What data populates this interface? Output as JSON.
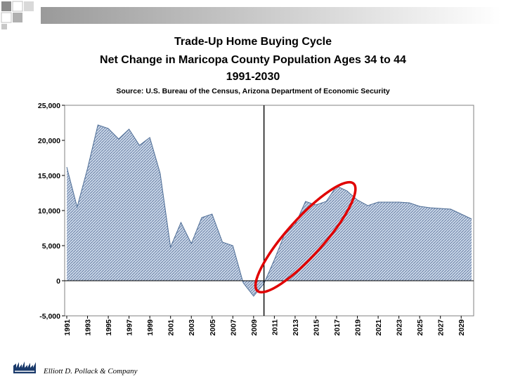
{
  "slide": {
    "title_lines": [
      "Trade-Up Home Buying Cycle",
      "Net Change in Maricopa County Population Ages 34 to 44",
      "1991-2030"
    ],
    "source": "Source: U.S. Bureau of the Census, Arizona Department of Economic Security",
    "footer": "Elliott D. Pollack & Company"
  },
  "colors": {
    "area_fill": "#c9d6e8",
    "hatch": "#5a7299",
    "outline": "#4f6e96",
    "highlight_ellipse": "#e00000",
    "divider_line": "#000000",
    "deco_gradient_start": "#9a9a9a",
    "deco_gradient_end": "#ffffff",
    "logo": "#1a3a6b"
  },
  "chart_data": {
    "type": "area",
    "title": "Net Change in Maricopa County Population Ages 34 to 44",
    "xlabel": "",
    "ylabel": "",
    "ylim": [
      -5000,
      25000
    ],
    "yticks": [
      -5000,
      0,
      5000,
      10000,
      15000,
      20000,
      25000
    ],
    "ytick_labels": [
      "-5,000",
      "0",
      "5,000",
      "10,000",
      "15,000",
      "20,000",
      "25,000"
    ],
    "xtick_labels": [
      "1991",
      "1993",
      "1995",
      "1997",
      "1999",
      "2001",
      "2003",
      "2005",
      "2007",
      "2009",
      "2011",
      "2013",
      "2015",
      "2017",
      "2019",
      "2021",
      "2023",
      "2025",
      "2027",
      "2029"
    ],
    "x": [
      1991,
      1992,
      1993,
      1994,
      1995,
      1996,
      1997,
      1998,
      1999,
      2000,
      2001,
      2002,
      2003,
      2004,
      2005,
      2006,
      2007,
      2008,
      2009,
      2010,
      2011,
      2012,
      2013,
      2014,
      2015,
      2016,
      2017,
      2018,
      2019,
      2020,
      2021,
      2022,
      2023,
      2024,
      2025,
      2026,
      2027,
      2028,
      2029,
      2030
    ],
    "values": [
      16200,
      10500,
      16000,
      22200,
      21700,
      20200,
      21600,
      19300,
      20400,
      15300,
      4800,
      8300,
      5300,
      9000,
      9500,
      5500,
      5000,
      -300,
      -2200,
      -400,
      3000,
      6700,
      8000,
      11300,
      10800,
      11300,
      13500,
      12800,
      11500,
      10700,
      11200,
      11200,
      11200,
      11100,
      10600,
      10400,
      10300,
      10200,
      9500,
      8800
    ],
    "divider_at": 2010,
    "highlight": {
      "from": 2010,
      "to": 2018,
      "label": "circled rise"
    },
    "grid": false,
    "legend": "none"
  }
}
